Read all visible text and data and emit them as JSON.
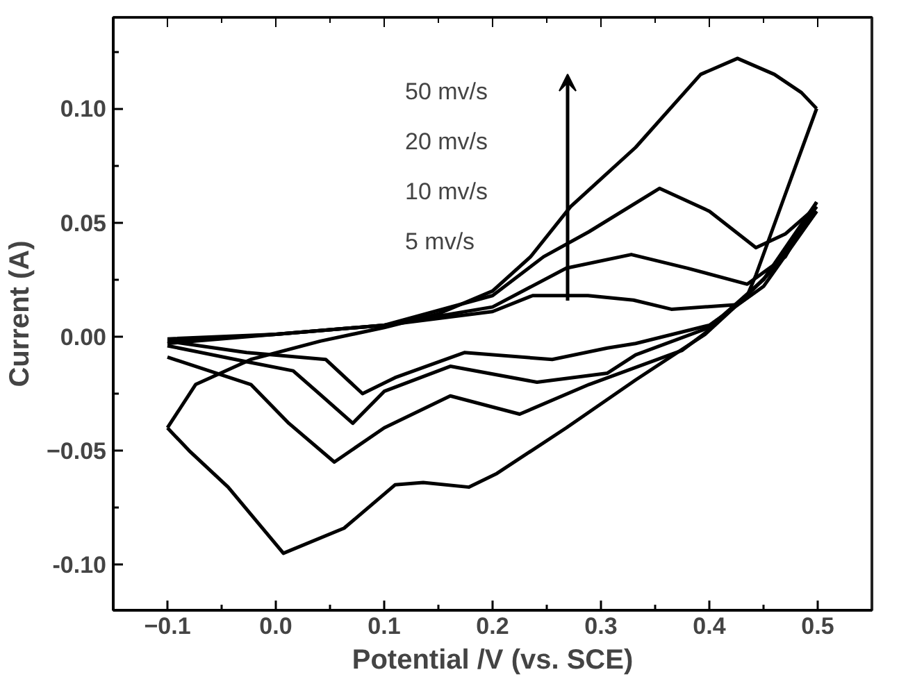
{
  "chart_data": {
    "type": "line",
    "xlabel": "Potential /V (vs. SCE)",
    "ylabel": "Current (A)",
    "xlim": [
      -0.15,
      0.55
    ],
    "ylim": [
      -0.12,
      0.14
    ],
    "xticks": [
      -0.1,
      {
        "value": -0.05,
        "label": null
      },
      {
        "value": 0.0,
        "label": "0.0"
      },
      {
        "value": 0.05,
        "label": null
      },
      0.1,
      {
        "value": 0.15,
        "label": null
      },
      0.2,
      {
        "value": 0.25,
        "label": null
      },
      0.3,
      {
        "value": 0.35,
        "label": null
      },
      0.4,
      {
        "value": 0.45,
        "label": null
      },
      0.5
    ],
    "yticks": [
      {
        "value": -0.1,
        "label": "-0.10"
      },
      {
        "value": -0.075,
        "label": null
      },
      -0.05,
      {
        "value": -0.025,
        "label": null
      },
      {
        "value": 0.0,
        "label": "0.00"
      },
      {
        "value": 0.025,
        "label": null
      },
      0.05,
      {
        "value": 0.075,
        "label": null
      },
      {
        "value": 0.1,
        "label": "0.10"
      },
      {
        "value": 0.125,
        "label": null
      }
    ],
    "line_style": "solid",
    "annotations": [
      "50 mv/s",
      "20 mv/s",
      "10 mv/s",
      "5 mv/s"
    ],
    "series": [
      {
        "color": "#000000",
        "x": [
          -0.1,
          -0.074,
          -0.023,
          0.041,
          0.1,
          0.15,
          0.2,
          0.235,
          0.272,
          0.332,
          0.392,
          0.426,
          0.46,
          0.485,
          0.499
        ],
        "values": [
          -0.04,
          -0.021,
          -0.01,
          -0.002,
          0.004,
          0.01,
          0.02,
          0.035,
          0.057,
          0.083,
          0.115,
          0.122,
          0.115,
          0.107,
          0.1
        ]
      },
      {
        "color": "#000000",
        "x": [
          0.499,
          0.469,
          0.443,
          0.435,
          0.396,
          0.332,
          0.268,
          0.204,
          0.178,
          0.136,
          0.11,
          0.063,
          0.007,
          -0.044,
          -0.08,
          -0.1
        ],
        "values": [
          0.1,
          0.061,
          0.027,
          0.018,
          0.001,
          -0.019,
          -0.04,
          -0.06,
          -0.066,
          -0.064,
          -0.065,
          -0.084,
          -0.095,
          -0.066,
          -0.05,
          -0.04
        ]
      },
      {
        "color": "#000000",
        "x": [
          -0.1,
          0.0,
          0.1,
          0.2,
          0.247,
          0.289,
          0.354,
          0.4,
          0.443,
          0.47,
          0.499
        ],
        "values": [
          -0.002,
          0.001,
          0.005,
          0.018,
          0.035,
          0.046,
          0.065,
          0.055,
          0.039,
          0.045,
          0.057
        ]
      },
      {
        "color": "#000000",
        "x": [
          0.499,
          0.45,
          0.4,
          0.375,
          0.289,
          0.225,
          0.161,
          0.1,
          0.054,
          0.012,
          -0.023,
          -0.1
        ],
        "values": [
          0.057,
          0.025,
          0.003,
          -0.006,
          -0.021,
          -0.034,
          -0.026,
          -0.04,
          -0.055,
          -0.038,
          -0.021,
          -0.009
        ]
      },
      {
        "color": "#000000",
        "x": [
          -0.1,
          0.0,
          0.1,
          0.2,
          0.268,
          0.328,
          0.38,
          0.435,
          0.47,
          0.499
        ],
        "values": [
          -0.003,
          0.001,
          0.005,
          0.013,
          0.03,
          0.036,
          0.03,
          0.023,
          0.035,
          0.059
        ]
      },
      {
        "color": "#000000",
        "x": [
          0.499,
          0.45,
          0.4,
          0.332,
          0.306,
          0.241,
          0.161,
          0.1,
          0.071,
          0.04,
          0.016,
          -0.027,
          -0.1
        ],
        "values": [
          0.059,
          0.025,
          0.004,
          -0.008,
          -0.016,
          -0.02,
          -0.013,
          -0.024,
          -0.038,
          -0.025,
          -0.015,
          -0.011,
          -0.004
        ]
      },
      {
        "color": "#000000",
        "x": [
          -0.1,
          0.0,
          0.1,
          0.2,
          0.237,
          0.288,
          0.33,
          0.365,
          0.426,
          0.46,
          0.499
        ],
        "values": [
          -0.001,
          0.001,
          0.005,
          0.011,
          0.018,
          0.018,
          0.016,
          0.012,
          0.014,
          0.03,
          0.055
        ]
      },
      {
        "color": "#000000",
        "x": [
          0.499,
          0.45,
          0.4,
          0.332,
          0.306,
          0.255,
          0.174,
          0.11,
          0.08,
          0.046,
          -0.027,
          -0.1
        ],
        "values": [
          0.055,
          0.022,
          0.005,
          -0.003,
          -0.005,
          -0.01,
          -0.007,
          -0.018,
          -0.025,
          -0.01,
          -0.007,
          -0.002
        ]
      }
    ]
  }
}
